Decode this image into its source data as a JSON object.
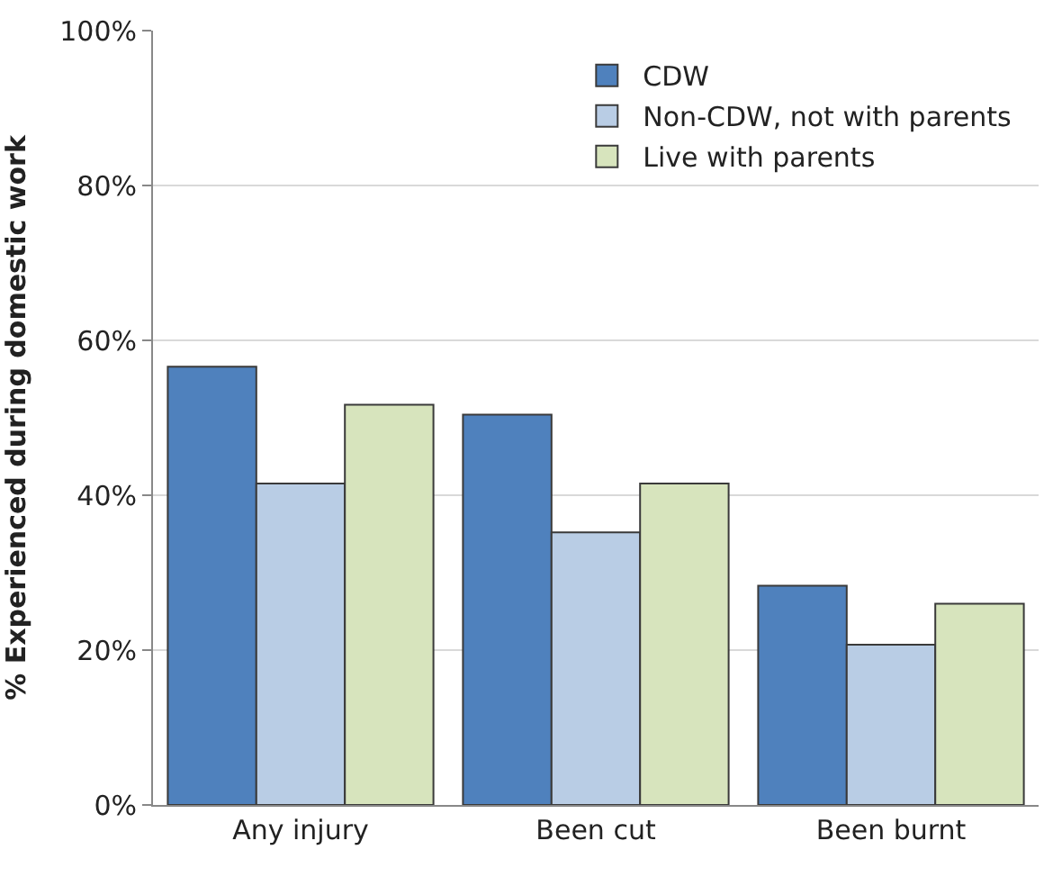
{
  "chart_data": {
    "type": "bar",
    "ylabel": "% Experienced during domestic work",
    "categories": [
      "Any injury",
      "Been cut",
      "Been burnt"
    ],
    "series": [
      {
        "name": "CDW",
        "color": "#4f81bd",
        "values": [
          56.6,
          50.4,
          28.3
        ]
      },
      {
        "name": "Non-CDW, not with parents",
        "color": "#b9cde5",
        "values": [
          41.5,
          35.2,
          20.7
        ]
      },
      {
        "name": "Live with parents",
        "color": "#d7e4bd",
        "values": [
          51.7,
          41.5,
          26.0
        ]
      }
    ],
    "ylim": [
      0,
      100
    ],
    "yticks": [
      {
        "value": 0,
        "label": "0%"
      },
      {
        "value": 20,
        "label": "20%"
      },
      {
        "value": 40,
        "label": "40%"
      },
      {
        "value": 60,
        "label": "60%"
      },
      {
        "value": 80,
        "label": "80%"
      },
      {
        "value": 100,
        "label": "100%"
      }
    ],
    "grid": "y",
    "legend": "top right"
  }
}
